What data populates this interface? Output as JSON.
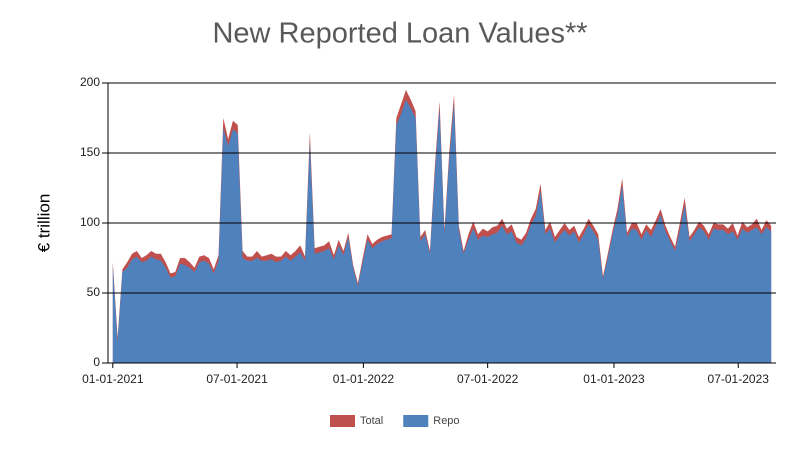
{
  "chart_data": {
    "type": "area",
    "title": "New Reported Loan Values**",
    "y_label": "€ trillion",
    "x": [
      "2021-01-01",
      "2021-01-08",
      "2021-01-15",
      "2021-01-22",
      "2021-01-29",
      "2021-02-05",
      "2021-02-12",
      "2021-02-19",
      "2021-02-26",
      "2021-03-05",
      "2021-03-12",
      "2021-03-19",
      "2021-03-26",
      "2021-04-02",
      "2021-04-09",
      "2021-04-16",
      "2021-04-23",
      "2021-04-30",
      "2021-05-07",
      "2021-05-14",
      "2021-05-21",
      "2021-05-28",
      "2021-06-04",
      "2021-06-11",
      "2021-06-18",
      "2021-06-25",
      "2021-07-02",
      "2021-07-09",
      "2021-07-16",
      "2021-07-23",
      "2021-07-30",
      "2021-08-06",
      "2021-08-13",
      "2021-08-20",
      "2021-08-27",
      "2021-09-03",
      "2021-09-10",
      "2021-09-17",
      "2021-09-24",
      "2021-10-01",
      "2021-10-08",
      "2021-10-15",
      "2021-10-22",
      "2021-10-29",
      "2021-11-05",
      "2021-11-12",
      "2021-11-19",
      "2021-11-26",
      "2021-12-03",
      "2021-12-10",
      "2021-12-17",
      "2021-12-24",
      "2021-12-31",
      "2022-01-07",
      "2022-01-14",
      "2022-01-21",
      "2022-01-28",
      "2022-02-04",
      "2022-02-11",
      "2022-02-18",
      "2022-02-25",
      "2022-03-04",
      "2022-03-11",
      "2022-03-18",
      "2022-03-25",
      "2022-04-01",
      "2022-04-08",
      "2022-04-15",
      "2022-04-22",
      "2022-04-29",
      "2022-05-06",
      "2022-05-13",
      "2022-05-20",
      "2022-05-27",
      "2022-06-03",
      "2022-06-10",
      "2022-06-17",
      "2022-06-24",
      "2022-07-01",
      "2022-07-08",
      "2022-07-15",
      "2022-07-22",
      "2022-07-29",
      "2022-08-05",
      "2022-08-12",
      "2022-08-19",
      "2022-08-26",
      "2022-09-02",
      "2022-09-09",
      "2022-09-16",
      "2022-09-23",
      "2022-09-30",
      "2022-10-07",
      "2022-10-14",
      "2022-10-21",
      "2022-10-28",
      "2022-11-04",
      "2022-11-11",
      "2022-11-18",
      "2022-11-25",
      "2022-12-02",
      "2022-12-09",
      "2022-12-16",
      "2022-12-23",
      "2022-12-30",
      "2023-01-06",
      "2023-01-13",
      "2023-01-20",
      "2023-01-27",
      "2023-02-03",
      "2023-02-10",
      "2023-02-17",
      "2023-02-24",
      "2023-03-03",
      "2023-03-10",
      "2023-03-17",
      "2023-03-24",
      "2023-03-31",
      "2023-04-07",
      "2023-04-14",
      "2023-04-21",
      "2023-04-28",
      "2023-05-05",
      "2023-05-12",
      "2023-05-19",
      "2023-05-26",
      "2023-06-02",
      "2023-06-09",
      "2023-06-16",
      "2023-06-23",
      "2023-06-30",
      "2023-07-07",
      "2023-07-14",
      "2023-07-21",
      "2023-07-28",
      "2023-08-04",
      "2023-08-11",
      "2023-08-18"
    ],
    "series": [
      {
        "name": "Total",
        "color": "#c0504d",
        "values": [
          72,
          18,
          67,
          72,
          78,
          80,
          75,
          77,
          80,
          78,
          78,
          72,
          64,
          65,
          75,
          75,
          72,
          68,
          76,
          77,
          75,
          67,
          77,
          175,
          160,
          173,
          170,
          80,
          76,
          76,
          80,
          76,
          77,
          78,
          76,
          76,
          80,
          77,
          80,
          84,
          76,
          165,
          82,
          83,
          84,
          87,
          77,
          88,
          80,
          93,
          70,
          57,
          75,
          92,
          85,
          88,
          90,
          91,
          92,
          175,
          185,
          195,
          188,
          180,
          90,
          95,
          80,
          140,
          187,
          95,
          150,
          192,
          98,
          80,
          92,
          101,
          92,
          96,
          94,
          97,
          98,
          103,
          96,
          99,
          90,
          88,
          93,
          103,
          110,
          128,
          95,
          101,
          90,
          95,
          100,
          95,
          98,
          90,
          96,
          103,
          98,
          92,
          62,
          78,
          95,
          110,
          132,
          93,
          100,
          100,
          92,
          99,
          95,
          102,
          110,
          98,
          90,
          83,
          100,
          118,
          90,
          95,
          101,
          98,
          92,
          100,
          99,
          99,
          96,
          100,
          91,
          101,
          97,
          99,
          103,
          95,
          102,
          98
        ]
      },
      {
        "name": "Repo",
        "color": "#4f81bd",
        "values": [
          70,
          15,
          65,
          68,
          74,
          76,
          72,
          73,
          76,
          74,
          73,
          68,
          61,
          62,
          71,
          70,
          68,
          65,
          72,
          73,
          71,
          64,
          73,
          168,
          155,
          167,
          164,
          75,
          73,
          73,
          75,
          73,
          73,
          74,
          72,
          73,
          76,
          73,
          76,
          79,
          73,
          158,
          78,
          79,
          80,
          82,
          74,
          84,
          77,
          90,
          68,
          55,
          72,
          88,
          82,
          85,
          87,
          88,
          89,
          170,
          178,
          188,
          182,
          175,
          87,
          92,
          78,
          135,
          182,
          92,
          145,
          186,
          95,
          78,
          88,
          96,
          88,
          91,
          90,
          92,
          93,
          98,
          92,
          94,
          86,
          84,
          89,
          99,
          105,
          123,
          92,
          96,
          86,
          91,
          95,
          91,
          94,
          86,
          92,
          99,
          94,
          88,
          60,
          75,
          92,
          106,
          127,
          90,
          96,
          95,
          88,
          95,
          90,
          98,
          106,
          94,
          87,
          80,
          95,
          113,
          87,
          92,
          97,
          94,
          88,
          96,
          95,
          95,
          92,
          94,
          88,
          96,
          93,
          95,
          97,
          92,
          97,
          94
        ]
      }
    ],
    "xlim": [
      "2020-12-25",
      "2023-08-25"
    ],
    "xticks": [
      {
        "value": "2021-01-01",
        "label": "01-01-2021"
      },
      {
        "value": "2021-07-01",
        "label": "07-01-2021"
      },
      {
        "value": "2022-01-01",
        "label": "01-01-2022"
      },
      {
        "value": "2022-07-01",
        "label": "07-01-2022"
      },
      {
        "value": "2023-01-01",
        "label": "01-01-2023"
      },
      {
        "value": "2023-07-01",
        "label": "07-01-2023"
      }
    ],
    "ylim": [
      0,
      200
    ],
    "yticks": [
      0,
      50,
      100,
      150,
      200
    ],
    "grid": true,
    "legend": "bottom"
  }
}
